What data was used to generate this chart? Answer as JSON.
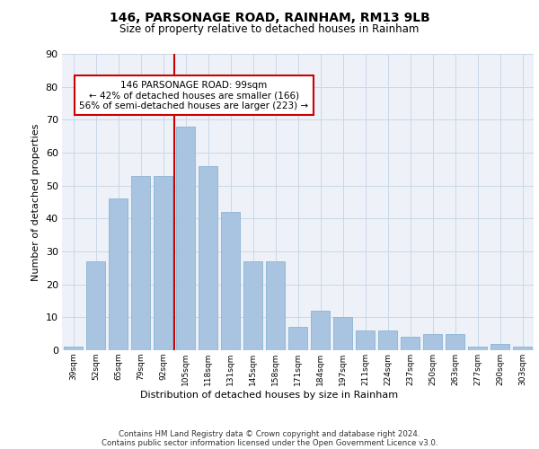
{
  "title1": "146, PARSONAGE ROAD, RAINHAM, RM13 9LB",
  "title2": "Size of property relative to detached houses in Rainham",
  "xlabel": "Distribution of detached houses by size in Rainham",
  "ylabel": "Number of detached properties",
  "categories": [
    "39sqm",
    "52sqm",
    "65sqm",
    "79sqm",
    "92sqm",
    "105sqm",
    "118sqm",
    "131sqm",
    "145sqm",
    "158sqm",
    "171sqm",
    "184sqm",
    "197sqm",
    "211sqm",
    "224sqm",
    "237sqm",
    "250sqm",
    "263sqm",
    "277sqm",
    "290sqm",
    "303sqm"
  ],
  "values": [
    1,
    27,
    46,
    53,
    53,
    68,
    56,
    42,
    27,
    27,
    7,
    12,
    10,
    6,
    6,
    4,
    5,
    5,
    1,
    2,
    1
  ],
  "bar_color": "#a8c4e0",
  "bar_edge_color": "#8ab4d4",
  "grid_color": "#c8d8e8",
  "vline_color": "#cc0000",
  "annotation_text": "146 PARSONAGE ROAD: 99sqm\n← 42% of detached houses are smaller (166)\n56% of semi-detached houses are larger (223) →",
  "ylim": [
    0,
    90
  ],
  "yticks": [
    0,
    10,
    20,
    30,
    40,
    50,
    60,
    70,
    80,
    90
  ],
  "footer1": "Contains HM Land Registry data © Crown copyright and database right 2024.",
  "footer2": "Contains public sector information licensed under the Open Government Licence v3.0.",
  "bg_color": "#eef2f8"
}
